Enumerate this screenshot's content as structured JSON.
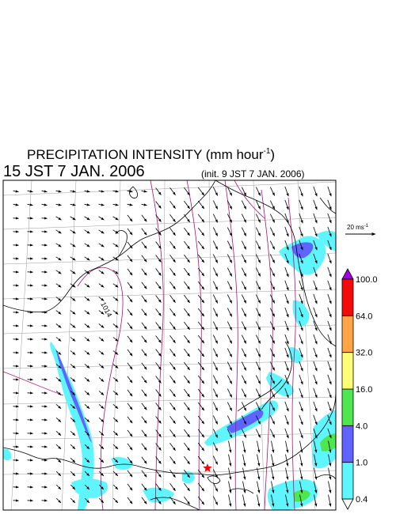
{
  "title": {
    "main": "PRECIPITATION INTENSITY (mm hour",
    "exponent": "-1",
    "close": ")"
  },
  "valid_time": "15 JST 7 JAN. 2006",
  "init_time": "(init. 9 JST 7 JAN. 2006)",
  "vector_scale": {
    "label": "20 ms",
    "exponent": "-1"
  },
  "contour_label": "1014",
  "colorbar": {
    "levels": [
      "0.4",
      "1.0",
      "4.0",
      "16.0",
      "32.0",
      "64.0",
      "100.0"
    ],
    "colors": [
      "#5ff5ff",
      "#5f63ff",
      "#50e650",
      "#fffd75",
      "#ffa548",
      "#f50a0a",
      "#a100e5"
    ],
    "under_color": "#ffffff",
    "over_color": "#a100e5"
  },
  "map_colors": {
    "coast": "#000000",
    "isobar": "#b0126c",
    "grid": "#9a9a9a",
    "arrow": "#000000"
  },
  "marker_color": "#ff0000"
}
